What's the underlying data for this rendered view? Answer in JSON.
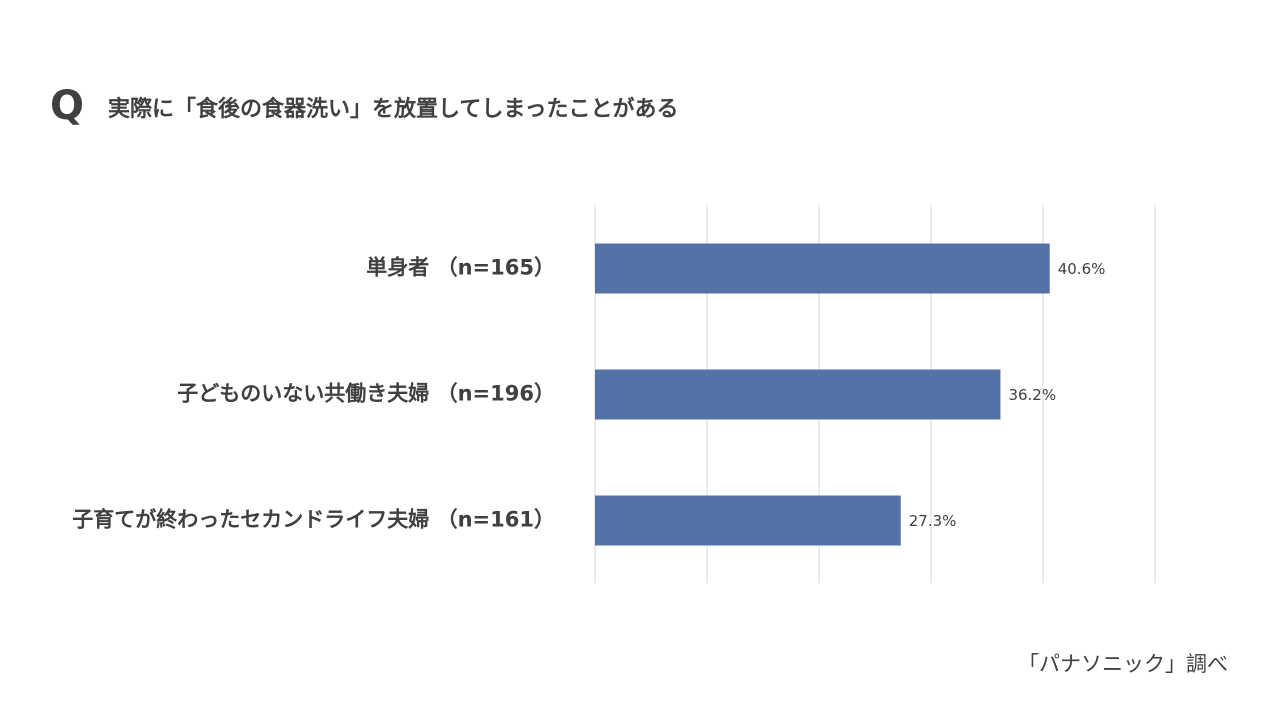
{
  "chart_data": {
    "type": "bar",
    "orientation": "horizontal",
    "question_marker": "Q",
    "title": "実際に「食後の食器洗い」を放置してしまったことがある",
    "categories": [
      "単身者 （n=165）",
      "子どものいない共働き夫婦 （n=196）",
      "子育てが終わったセカンドライフ夫婦 （n=161）"
    ],
    "values": [
      40.6,
      36.2,
      27.3
    ],
    "value_labels": [
      "40.6%",
      "36.2%",
      "27.3%"
    ],
    "color": "#5572a7",
    "xlim": [
      0,
      50
    ],
    "xticks": [
      0,
      10,
      20,
      30,
      40,
      50
    ],
    "grid": true,
    "source": "「パナソニック」調べ"
  }
}
